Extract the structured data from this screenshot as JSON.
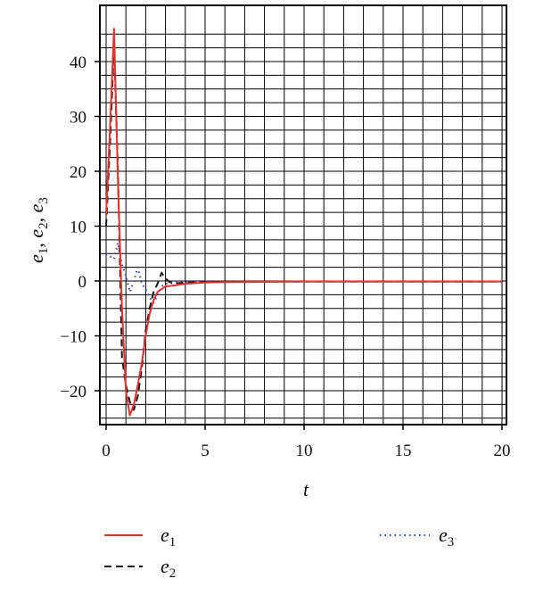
{
  "chart_data": {
    "type": "line",
    "xlabel": "t",
    "ylabel": {
      "base": "e",
      "subs": [
        "1",
        "2",
        "3"
      ]
    },
    "xlim": [
      0,
      20
    ],
    "ylim": [
      -26,
      46
    ],
    "xticks": [
      0,
      5,
      10,
      15,
      20
    ],
    "yticks": [
      -20,
      -10,
      0,
      10,
      20,
      30,
      40
    ],
    "grid": true,
    "legend_placement": "bottom",
    "series": [
      {
        "name": "e1",
        "name_base": "e",
        "name_sub": "1",
        "color": "#e8312f",
        "style": "solid",
        "x": [
          0,
          0.2,
          0.4,
          0.6,
          0.8,
          1.0,
          1.2,
          1.4,
          1.6,
          1.8,
          2.0,
          2.2,
          2.4,
          2.6,
          2.8,
          3.0,
          3.5,
          4.0,
          5.0,
          6.0,
          10.0,
          20.0
        ],
        "y": [
          12,
          28,
          46,
          18,
          -5,
          -20,
          -24.5,
          -22.5,
          -19,
          -15,
          -10,
          -6,
          -3.5,
          -2,
          -1.5,
          -1,
          -0.8,
          -0.5,
          -0.3,
          -0.2,
          -0.1,
          -0.1
        ]
      },
      {
        "name": "e2",
        "name_base": "e",
        "name_sub": "2",
        "color": "#1a1a1a",
        "style": "dashed",
        "x": [
          0,
          0.2,
          0.4,
          0.6,
          0.8,
          1.0,
          1.2,
          1.4,
          1.6,
          1.8,
          2.0,
          2.2,
          2.4,
          2.6,
          2.8,
          3.0,
          3.2,
          3.5,
          4.0,
          5.0,
          6.0,
          10.0,
          20.0
        ],
        "y": [
          10,
          25,
          43,
          20,
          -14,
          -19,
          -22,
          -23.5,
          -21,
          -16,
          -9,
          -5,
          -2,
          -0.5,
          1.5,
          0.5,
          -0.2,
          -0.4,
          -0.3,
          -0.2,
          -0.1,
          -0.1,
          -0.1
        ]
      },
      {
        "name": "e3",
        "name_base": "e",
        "name_sub": "3",
        "color": "#2a3fd4",
        "style": "dotted",
        "x": [
          0,
          0.2,
          0.4,
          0.6,
          0.8,
          1.0,
          1.2,
          1.4,
          1.6,
          1.8,
          2.0,
          2.2,
          2.4,
          2.6,
          2.8,
          3.0,
          3.5,
          4.0,
          5.0,
          10.0,
          20.0
        ],
        "y": [
          5,
          4.5,
          4,
          7,
          3,
          1,
          -2,
          0,
          2.5,
          -0.5,
          -1.5,
          -3,
          -4,
          -2.5,
          -1,
          -0.5,
          -0.3,
          -0.2,
          -0.1,
          -0.1,
          -0.1
        ]
      }
    ]
  }
}
